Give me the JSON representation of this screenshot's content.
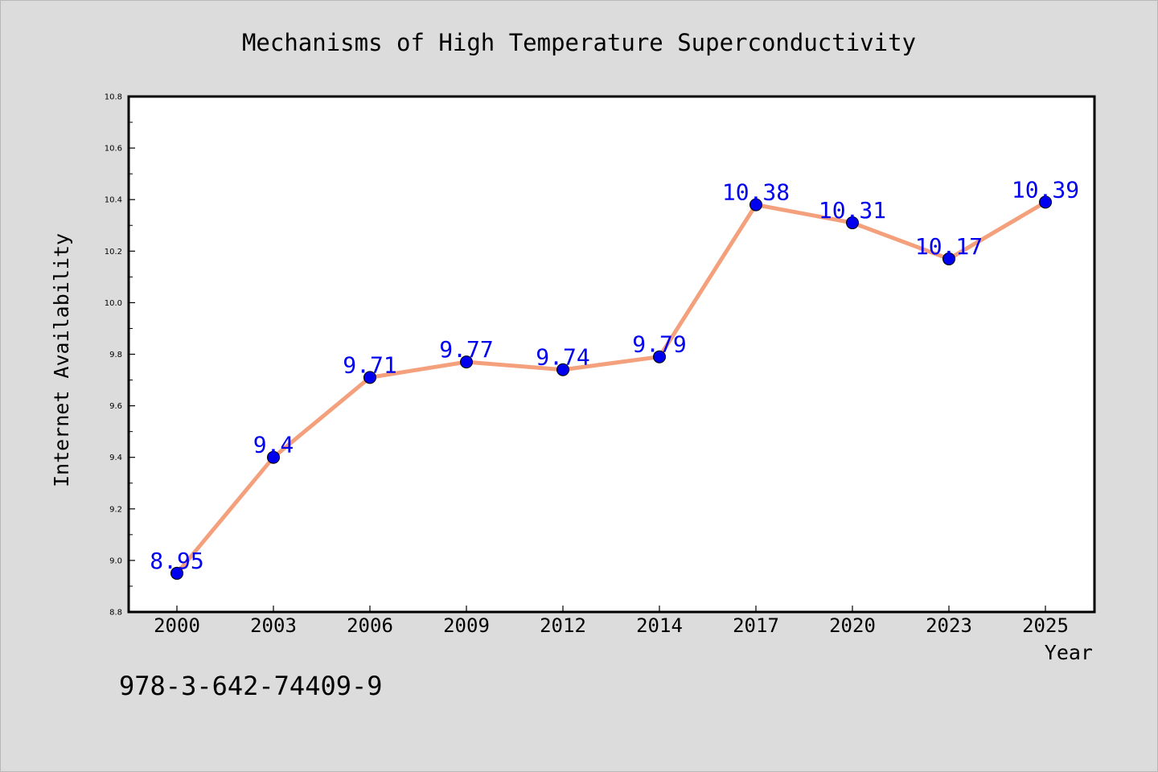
{
  "chart_data": {
    "type": "line",
    "title": "Mechanisms of High Temperature Superconductivity",
    "xlabel": "Year",
    "ylabel": "Internet Availability",
    "categories": [
      "2000",
      "2003",
      "2006",
      "2009",
      "2012",
      "2014",
      "2017",
      "2020",
      "2023",
      "2025"
    ],
    "series": [
      {
        "values": [
          8.95,
          9.4,
          9.71,
          9.77,
          9.74,
          9.79,
          10.38,
          10.31,
          10.17,
          10.39
        ],
        "labels": [
          "8.95",
          "9.4",
          "9.71",
          "9.77",
          "9.74",
          "9.79",
          "10.38",
          "10.31",
          "10.17",
          "10.39"
        ],
        "line_color": "#f4a07c",
        "marker_color": "#0000ee",
        "label_color": "#0000ee"
      }
    ],
    "ylim": [
      8.8,
      10.8
    ],
    "yticks": [
      "8.8",
      "9.0",
      "9.2",
      "9.4",
      "9.6",
      "9.8",
      "10.0",
      "10.2",
      "10.4",
      "10.6",
      "10.8"
    ],
    "grid": false,
    "background_color": "#dcdcdc",
    "plot_background": "#ffffff"
  },
  "footer": {
    "isbn": "978-3-642-74409-9"
  }
}
